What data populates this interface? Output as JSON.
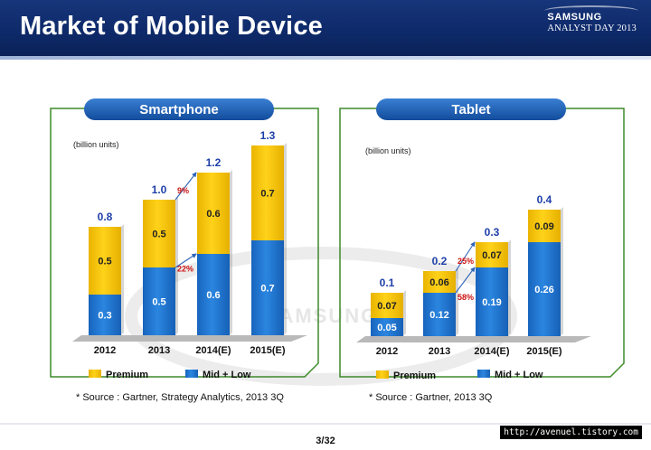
{
  "header": {
    "title": "Market of Mobile Device",
    "brand_line1": "SAMSUNG",
    "brand_line2": "ANALYST DAY 2013"
  },
  "background_logo": "SAMSUNG",
  "colors": {
    "premium": "#f5c400",
    "midlow": "#1f78d1",
    "panel_border": "#3d8a2a",
    "label_blue": "#1d3fa8",
    "pct_red": "#cc1111",
    "pill": "#1c5eb0"
  },
  "chart_data": [
    {
      "type": "bar",
      "stacked": true,
      "title": "Smartphone",
      "unit_label": "(billion units)",
      "categories": [
        "2012",
        "2013",
        "2014(E)",
        "2015(E)"
      ],
      "series": [
        {
          "name": "Mid + Low",
          "values": [
            0.3,
            0.5,
            0.6,
            0.7
          ],
          "labels": [
            "0.3",
            "0.5",
            "0.6",
            "0.7"
          ]
        },
        {
          "name": "Premium",
          "values": [
            0.5,
            0.5,
            0.6,
            0.7
          ],
          "labels": [
            "0.5",
            "0.5",
            "0.6",
            "0.7"
          ]
        }
      ],
      "totals": [
        "0.8",
        "1.0",
        "1.2",
        "1.3"
      ],
      "growth_annotations": [
        {
          "series": "Premium",
          "from": "2013",
          "to": "2014(E)",
          "label": "9%"
        },
        {
          "series": "Mid + Low",
          "from": "2013",
          "to": "2014(E)",
          "label": "22%"
        }
      ],
      "legend": [
        "Premium",
        "Mid + Low"
      ],
      "legend_position": "bottom",
      "source": "* Source : Gartner, Strategy Analytics, 2013 3Q"
    },
    {
      "type": "bar",
      "stacked": true,
      "title": "Tablet",
      "unit_label": "(billion units)",
      "categories": [
        "2012",
        "2013",
        "2014(E)",
        "2015(E)"
      ],
      "series": [
        {
          "name": "Mid + Low",
          "values": [
            0.05,
            0.12,
            0.19,
            0.26
          ],
          "labels": [
            "0.05",
            "0.12",
            "0.19",
            "0.26"
          ]
        },
        {
          "name": "Premium",
          "values": [
            0.07,
            0.06,
            0.07,
            0.09
          ],
          "labels": [
            "0.07",
            "0.06",
            "0.07",
            "0.09"
          ]
        }
      ],
      "totals": [
        "0.1",
        "0.2",
        "0.3",
        "0.4"
      ],
      "growth_annotations": [
        {
          "series": "Premium",
          "from": "2013",
          "to": "2014(E)",
          "label": "25%"
        },
        {
          "series": "Mid + Low",
          "from": "2013",
          "to": "2014(E)",
          "label": "58%"
        }
      ],
      "legend": [
        "Premium",
        "Mid + Low"
      ],
      "legend_position": "bottom",
      "source": "* Source : Gartner, 2013 3Q"
    }
  ],
  "footer": {
    "page": "3/32",
    "watermark": "http://avenuel.tistory.com"
  }
}
